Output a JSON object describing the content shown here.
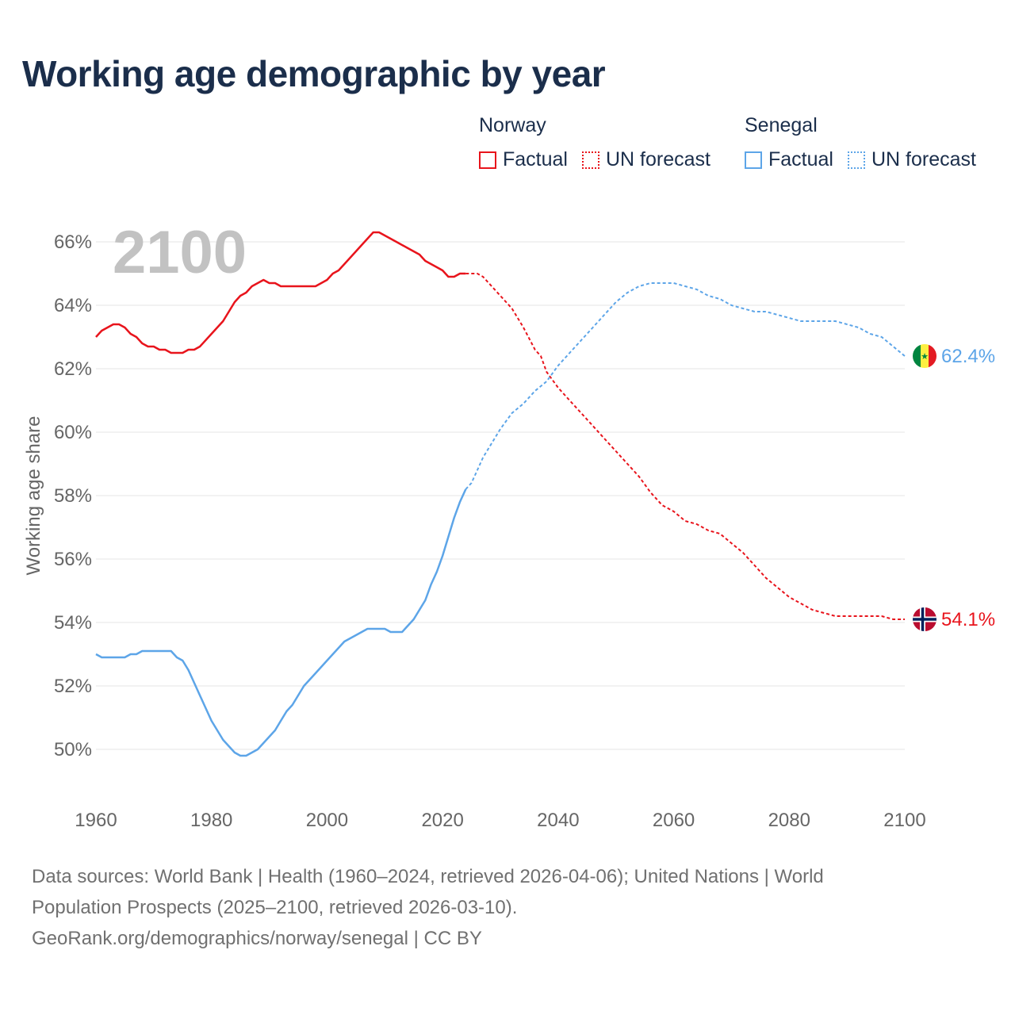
{
  "title": "Working age demographic by year",
  "year_display": "2100",
  "legend": {
    "groups": [
      {
        "name": "Norway",
        "factual_label": "Factual",
        "forecast_label": "UN forecast",
        "color": "#e8141c"
      },
      {
        "name": "Senegal",
        "factual_label": "Factual",
        "forecast_label": "UN forecast",
        "color": "#5da5e8"
      }
    ]
  },
  "footer": {
    "line1": "Data sources: World Bank | Health (1960–2024, retrieved 2026-04-06); United Nations | World",
    "line2": "Population Prospects (2025–2100, retrieved 2026-03-10).",
    "line3": "GeoRank.org/demographics/norway/senegal | CC BY"
  },
  "chart_data": {
    "type": "line",
    "title": "Working age demographic by year",
    "xlabel": "",
    "ylabel": "Working age share",
    "xlim": [
      1960,
      2100
    ],
    "ylim": [
      49,
      66.5
    ],
    "x_ticks": [
      1960,
      1980,
      2000,
      2020,
      2040,
      2060,
      2080,
      2100
    ],
    "x_tick_labels": [
      "1960",
      "1980",
      "2000",
      "2020",
      "2040",
      "2060",
      "2080",
      "2100"
    ],
    "y_ticks": [
      50,
      52,
      54,
      56,
      58,
      60,
      62,
      64,
      66
    ],
    "y_tick_labels": [
      "50%",
      "52%",
      "54%",
      "56%",
      "58%",
      "60%",
      "62%",
      "64%",
      "66%"
    ],
    "grid": true,
    "forecast_start": 2024,
    "series": [
      {
        "name": "Norway",
        "color": "#e8141c",
        "end_label": "54.1%",
        "flag": "norway",
        "points": [
          [
            1960,
            63.0
          ],
          [
            1961,
            63.2
          ],
          [
            1962,
            63.3
          ],
          [
            1963,
            63.4
          ],
          [
            1964,
            63.4
          ],
          [
            1965,
            63.3
          ],
          [
            1966,
            63.1
          ],
          [
            1967,
            63.0
          ],
          [
            1968,
            62.8
          ],
          [
            1969,
            62.7
          ],
          [
            1970,
            62.7
          ],
          [
            1971,
            62.6
          ],
          [
            1972,
            62.6
          ],
          [
            1973,
            62.5
          ],
          [
            1975,
            62.5
          ],
          [
            1976,
            62.6
          ],
          [
            1977,
            62.6
          ],
          [
            1978,
            62.7
          ],
          [
            1980,
            63.1
          ],
          [
            1982,
            63.5
          ],
          [
            1983,
            63.8
          ],
          [
            1984,
            64.1
          ],
          [
            1985,
            64.3
          ],
          [
            1986,
            64.4
          ],
          [
            1987,
            64.6
          ],
          [
            1988,
            64.7
          ],
          [
            1989,
            64.8
          ],
          [
            1990,
            64.7
          ],
          [
            1991,
            64.7
          ],
          [
            1992,
            64.6
          ],
          [
            1994,
            64.6
          ],
          [
            1996,
            64.6
          ],
          [
            1998,
            64.6
          ],
          [
            2000,
            64.8
          ],
          [
            2001,
            65.0
          ],
          [
            2002,
            65.1
          ],
          [
            2004,
            65.5
          ],
          [
            2006,
            65.9
          ],
          [
            2008,
            66.3
          ],
          [
            2009,
            66.3
          ],
          [
            2010,
            66.2
          ],
          [
            2012,
            66.0
          ],
          [
            2014,
            65.8
          ],
          [
            2016,
            65.6
          ],
          [
            2017,
            65.4
          ],
          [
            2019,
            65.2
          ],
          [
            2020,
            65.1
          ],
          [
            2021,
            64.9
          ],
          [
            2022,
            64.9
          ],
          [
            2023,
            65.0
          ],
          [
            2024,
            65.0
          ],
          [
            2025,
            65.0
          ],
          [
            2026,
            65.0
          ],
          [
            2027,
            64.9
          ],
          [
            2028,
            64.7
          ],
          [
            2030,
            64.3
          ],
          [
            2032,
            63.9
          ],
          [
            2034,
            63.3
          ],
          [
            2036,
            62.6
          ],
          [
            2037,
            62.4
          ],
          [
            2038,
            61.9
          ],
          [
            2040,
            61.4
          ],
          [
            2042,
            61.0
          ],
          [
            2044,
            60.6
          ],
          [
            2046,
            60.2
          ],
          [
            2048,
            59.8
          ],
          [
            2050,
            59.4
          ],
          [
            2052,
            59.0
          ],
          [
            2054,
            58.6
          ],
          [
            2056,
            58.1
          ],
          [
            2058,
            57.7
          ],
          [
            2060,
            57.5
          ],
          [
            2062,
            57.2
          ],
          [
            2064,
            57.1
          ],
          [
            2066,
            56.9
          ],
          [
            2068,
            56.8
          ],
          [
            2070,
            56.5
          ],
          [
            2072,
            56.2
          ],
          [
            2074,
            55.8
          ],
          [
            2076,
            55.4
          ],
          [
            2078,
            55.1
          ],
          [
            2080,
            54.8
          ],
          [
            2082,
            54.6
          ],
          [
            2084,
            54.4
          ],
          [
            2086,
            54.3
          ],
          [
            2088,
            54.2
          ],
          [
            2090,
            54.2
          ],
          [
            2092,
            54.2
          ],
          [
            2094,
            54.2
          ],
          [
            2096,
            54.2
          ],
          [
            2098,
            54.1
          ],
          [
            2100,
            54.1
          ]
        ]
      },
      {
        "name": "Senegal",
        "color": "#5da5e8",
        "end_label": "62.4%",
        "flag": "senegal",
        "points": [
          [
            1960,
            53.0
          ],
          [
            1961,
            52.9
          ],
          [
            1962,
            52.9
          ],
          [
            1963,
            52.9
          ],
          [
            1965,
            52.9
          ],
          [
            1966,
            53.0
          ],
          [
            1967,
            53.0
          ],
          [
            1968,
            53.1
          ],
          [
            1970,
            53.1
          ],
          [
            1972,
            53.1
          ],
          [
            1973,
            53.1
          ],
          [
            1974,
            52.9
          ],
          [
            1975,
            52.8
          ],
          [
            1976,
            52.5
          ],
          [
            1978,
            51.7
          ],
          [
            1980,
            50.9
          ],
          [
            1982,
            50.3
          ],
          [
            1984,
            49.9
          ],
          [
            1985,
            49.8
          ],
          [
            1986,
            49.8
          ],
          [
            1988,
            50.0
          ],
          [
            1990,
            50.4
          ],
          [
            1991,
            50.6
          ],
          [
            1992,
            50.9
          ],
          [
            1993,
            51.2
          ],
          [
            1994,
            51.4
          ],
          [
            1996,
            52.0
          ],
          [
            1998,
            52.4
          ],
          [
            2000,
            52.8
          ],
          [
            2002,
            53.2
          ],
          [
            2003,
            53.4
          ],
          [
            2005,
            53.6
          ],
          [
            2007,
            53.8
          ],
          [
            2009,
            53.8
          ],
          [
            2010,
            53.8
          ],
          [
            2011,
            53.7
          ],
          [
            2013,
            53.7
          ],
          [
            2015,
            54.1
          ],
          [
            2017,
            54.7
          ],
          [
            2018,
            55.2
          ],
          [
            2019,
            55.6
          ],
          [
            2020,
            56.1
          ],
          [
            2021,
            56.7
          ],
          [
            2022,
            57.3
          ],
          [
            2023,
            57.8
          ],
          [
            2024,
            58.2
          ],
          [
            2025,
            58.4
          ],
          [
            2026,
            58.8
          ],
          [
            2027,
            59.2
          ],
          [
            2028,
            59.5
          ],
          [
            2030,
            60.1
          ],
          [
            2032,
            60.6
          ],
          [
            2034,
            60.9
          ],
          [
            2036,
            61.3
          ],
          [
            2038,
            61.6
          ],
          [
            2040,
            62.1
          ],
          [
            2042,
            62.5
          ],
          [
            2044,
            62.9
          ],
          [
            2046,
            63.3
          ],
          [
            2048,
            63.7
          ],
          [
            2050,
            64.1
          ],
          [
            2052,
            64.4
          ],
          [
            2054,
            64.6
          ],
          [
            2056,
            64.7
          ],
          [
            2058,
            64.7
          ],
          [
            2060,
            64.7
          ],
          [
            2062,
            64.6
          ],
          [
            2064,
            64.5
          ],
          [
            2066,
            64.3
          ],
          [
            2068,
            64.2
          ],
          [
            2070,
            64.0
          ],
          [
            2072,
            63.9
          ],
          [
            2074,
            63.8
          ],
          [
            2076,
            63.8
          ],
          [
            2078,
            63.7
          ],
          [
            2080,
            63.6
          ],
          [
            2082,
            63.5
          ],
          [
            2084,
            63.5
          ],
          [
            2086,
            63.5
          ],
          [
            2088,
            63.5
          ],
          [
            2090,
            63.4
          ],
          [
            2092,
            63.3
          ],
          [
            2094,
            63.1
          ],
          [
            2096,
            63.0
          ],
          [
            2098,
            62.7
          ],
          [
            2100,
            62.4
          ]
        ]
      }
    ]
  }
}
